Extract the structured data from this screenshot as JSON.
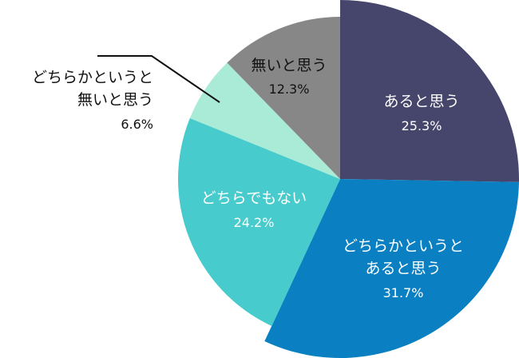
{
  "chart_data": {
    "type": "pie",
    "start_angle": "top",
    "direction": "clockwise",
    "slices": [
      {
        "label_lines": [
          "あると思う"
        ],
        "value": 25.3,
        "display": "25.3%",
        "color": "#46456c",
        "text_color": "#ffffff",
        "exploded": true
      },
      {
        "label_lines": [
          "どちらかというと",
          "あると思う"
        ],
        "value": 31.7,
        "display": "31.7%",
        "color": "#0a80c2",
        "text_color": "#ffffff",
        "exploded": true
      },
      {
        "label_lines": [
          "どちらでもない"
        ],
        "value": 24.2,
        "display": "24.2%",
        "color": "#48cbcc",
        "text_color": "#ffffff",
        "exploded": false
      },
      {
        "label_lines": [
          "どちらかというと",
          "無いと思う"
        ],
        "value": 6.6,
        "display": "6.6%",
        "color": "#a9ebd6",
        "text_color": "#111111",
        "exploded": false,
        "label_outside": true
      },
      {
        "label_lines": [
          "無いと思う"
        ],
        "value": 12.3,
        "display": "12.3%",
        "color": "#878787",
        "text_color": "#111111",
        "exploded": false
      }
    ]
  }
}
